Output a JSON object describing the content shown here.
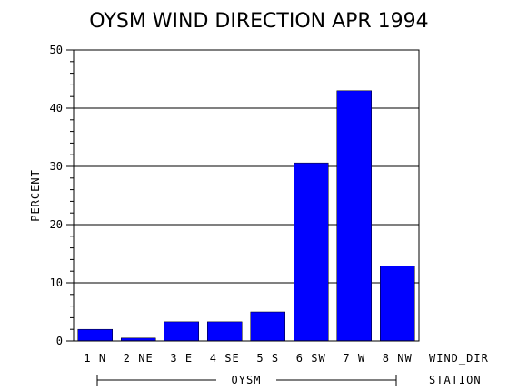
{
  "chart_data": {
    "type": "bar",
    "title": "OYSM WIND DIRECTION APR 1994",
    "ylabel": "PERCENT",
    "xlabel": "WIND_DIR",
    "group_axis_label": "STATION",
    "group_label": "OYSM",
    "categories": [
      "1 N",
      "2 NE",
      "3 E",
      "4 SE",
      "5 S",
      "6 SW",
      "7 W",
      "8 NW"
    ],
    "values": [
      2.0,
      0.5,
      3.3,
      3.3,
      5.0,
      30.6,
      43.0,
      12.9
    ],
    "ylim": [
      0,
      50
    ],
    "yticks": [
      0,
      10,
      20,
      30,
      40,
      50
    ],
    "grid": true,
    "bar_color": "#0000ff"
  }
}
